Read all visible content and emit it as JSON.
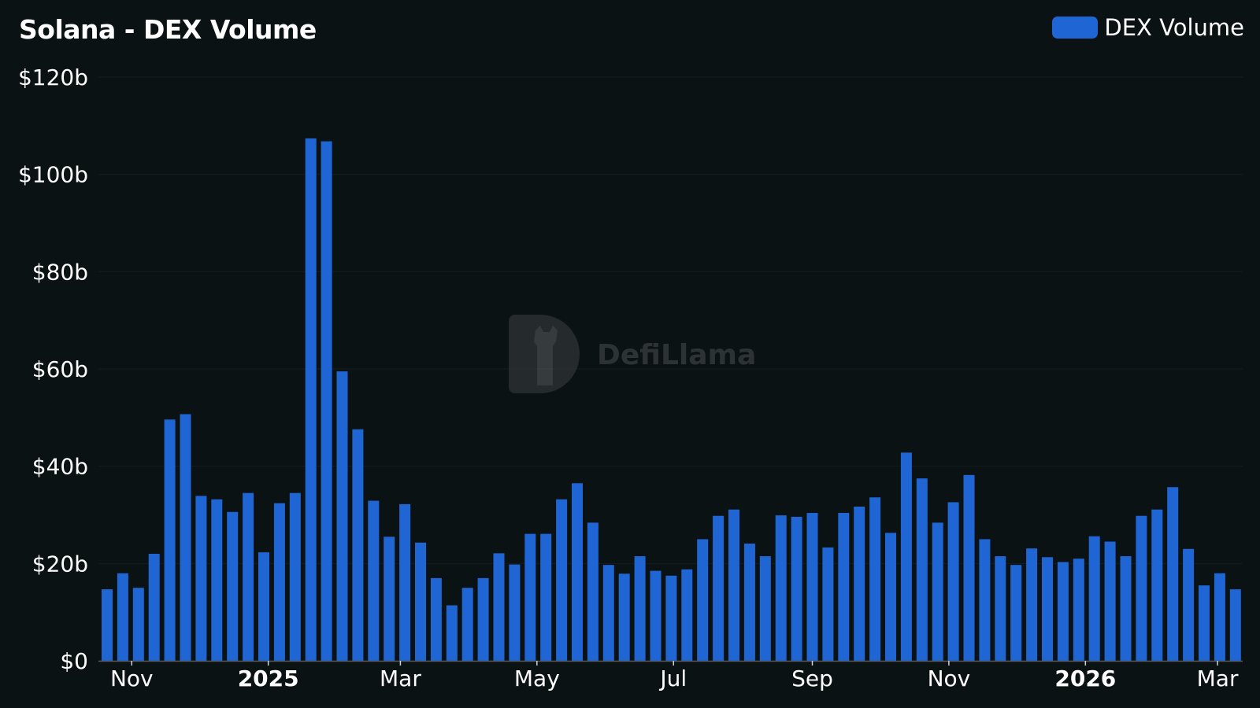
{
  "chart_data": {
    "type": "bar",
    "title": "Solana - DEX Volume",
    "series": [
      {
        "name": "DEX Volume",
        "color": "#1f66d4",
        "values": [
          14.7,
          18,
          15,
          22,
          49.6,
          50.7,
          33.9,
          33.2,
          30.6,
          34.5,
          22.3,
          32.4,
          34.5,
          107.4,
          106.8,
          59.5,
          47.6,
          32.9,
          25.5,
          32.2,
          24.3,
          17,
          11.4,
          15,
          17,
          22.1,
          19.8,
          26.1,
          26.1,
          33.2,
          36.5,
          28.4,
          19.7,
          17.9,
          21.5,
          18.5,
          17.5,
          18.8,
          25,
          29.8,
          31.1,
          24.1,
          21.5,
          29.9,
          29.6,
          30.4,
          23.3,
          30.4,
          31.7,
          33.6,
          26.3,
          42.8,
          37.5,
          28.4,
          32.6,
          38.2,
          25,
          21.5,
          19.7,
          23.1,
          21.3,
          20.3,
          21,
          25.6,
          24.5,
          21.5,
          29.8,
          31.1,
          35.7,
          23,
          15.5,
          18,
          14.7
        ]
      }
    ],
    "x": [
      "2024-10-21",
      "2024-10-28",
      "2024-11-04",
      "2024-11-11",
      "2024-11-18",
      "2024-11-25",
      "2024-12-02",
      "2024-12-09",
      "2024-12-16",
      "2024-12-23",
      "2024-12-30",
      "2025-01-06",
      "2025-01-13",
      "2025-01-20",
      "2025-01-27",
      "2025-02-03",
      "2025-02-10",
      "2025-02-17",
      "2025-02-24",
      "2025-03-03",
      "2025-03-10",
      "2025-03-17",
      "2025-03-24",
      "2025-03-31",
      "2025-04-07",
      "2025-04-14",
      "2025-04-21",
      "2025-04-28",
      "2025-05-05",
      "2025-05-12",
      "2025-05-19",
      "2025-05-26",
      "2025-06-02",
      "2025-06-09",
      "2025-06-16",
      "2025-06-23",
      "2025-06-30",
      "2025-07-07",
      "2025-07-14",
      "2025-07-21",
      "2025-07-28",
      "2025-08-04",
      "2025-08-11",
      "2025-08-18",
      "2025-08-25",
      "2025-09-01",
      "2025-09-08",
      "2025-09-15",
      "2025-09-22",
      "2025-09-29",
      "2025-10-06",
      "2025-10-13",
      "2025-10-20",
      "2025-10-27",
      "2025-11-03",
      "2025-11-10",
      "2025-11-17",
      "2025-11-24",
      "2025-12-01",
      "2025-12-08",
      "2025-12-15",
      "2025-12-22",
      "2025-12-29",
      "2026-01-05",
      "2026-01-12",
      "2026-01-19",
      "2026-01-26",
      "2026-02-02",
      "2026-02-09",
      "2026-02-16",
      "2026-02-23",
      "2026-03-02",
      "2026-03-09"
    ],
    "ylim": [
      0,
      120
    ],
    "y_unit": "billion USD",
    "y_ticks": [
      {
        "value": 0,
        "label": "$0"
      },
      {
        "value": 20,
        "label": "$20b"
      },
      {
        "value": 40,
        "label": "$40b"
      },
      {
        "value": 60,
        "label": "$60b"
      },
      {
        "value": 80,
        "label": "$80b"
      },
      {
        "value": 100,
        "label": "$100b"
      },
      {
        "value": 120,
        "label": "$120b"
      }
    ],
    "x_ticks": [
      {
        "date": "2024-11-01",
        "label": "Nov",
        "bold": false
      },
      {
        "date": "2025-01-01",
        "label": "2025",
        "bold": true
      },
      {
        "date": "2025-03-01",
        "label": "Mar",
        "bold": false
      },
      {
        "date": "2025-05-01",
        "label": "May",
        "bold": false
      },
      {
        "date": "2025-07-01",
        "label": "Jul",
        "bold": false
      },
      {
        "date": "2025-09-01",
        "label": "Sep",
        "bold": false
      },
      {
        "date": "2025-11-01",
        "label": "Nov",
        "bold": false
      },
      {
        "date": "2026-01-01",
        "label": "2026",
        "bold": true
      },
      {
        "date": "2026-03-01",
        "label": "Mar",
        "bold": false
      }
    ],
    "grid": true,
    "legend": "top-right",
    "watermark": "DefiLlama"
  }
}
